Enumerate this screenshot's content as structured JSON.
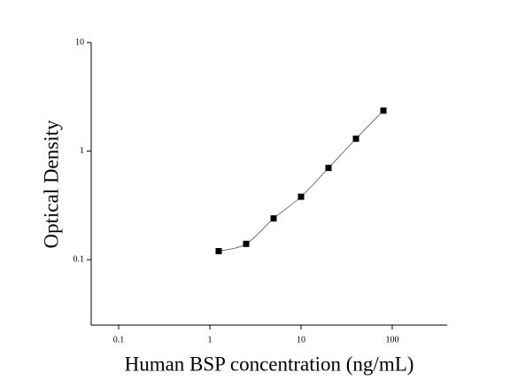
{
  "chart_data": {
    "type": "scatter",
    "x_label": "Human BSP concentration (ng/mL)",
    "y_label": "Optical Density",
    "x": [
      1.25,
      2.5,
      5,
      10,
      20,
      40,
      80
    ],
    "values": [
      0.12,
      0.14,
      0.24,
      0.38,
      0.7,
      1.3,
      2.36
    ],
    "color": "#000000",
    "xscale": "log",
    "yscale": "log",
    "xlim": [
      0.05,
      400
    ],
    "ylim": [
      0.025,
      10
    ],
    "xticks": [
      0.1,
      1,
      10,
      100
    ],
    "yticks": [
      0.1,
      1,
      10
    ]
  }
}
